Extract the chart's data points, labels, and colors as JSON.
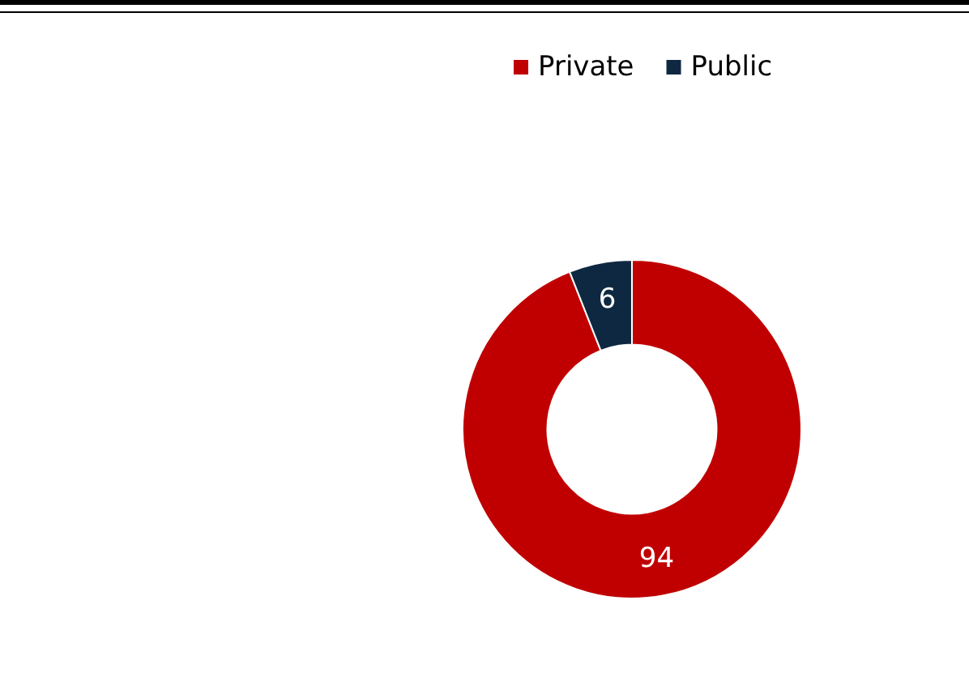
{
  "chart_data": {
    "type": "donut",
    "categories": [
      "Private",
      "Public"
    ],
    "values": [
      94,
      6
    ],
    "colors": [
      "#c00000",
      "#0e2841"
    ],
    "data_labels": true,
    "legend": "top"
  }
}
